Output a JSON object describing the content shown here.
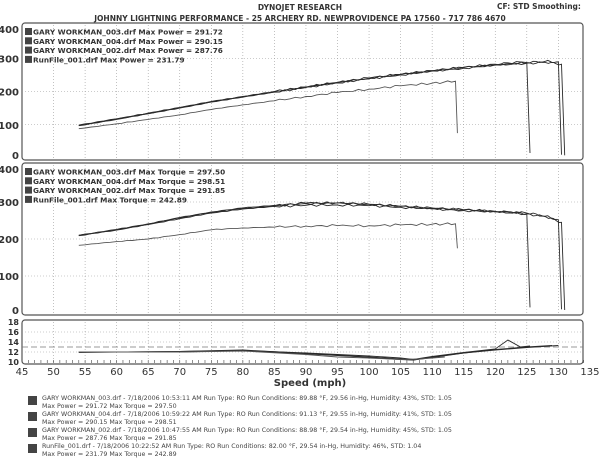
{
  "header": {
    "title": "DYNOJET RESEARCH",
    "subtitle": "JOHNNY LIGHTNING PERFORMANCE - 25 ARCHERY RD. NEWPROVIDENCE PA 17560 - 717 786 4670",
    "settings": "CF: STD  Smoothing: "
  },
  "chart_data": [
    {
      "type": "line",
      "title": "",
      "ylim": [
        0,
        400
      ],
      "yticks": [
        "0",
        "100",
        "200",
        "300",
        "400"
      ],
      "xlim": [
        45,
        135
      ],
      "grid": true,
      "legend_placement": "top-left",
      "series": [
        {
          "name": "GARY WORKMAN_003.drf Max Power = 291.72",
          "x": [
            54,
            60,
            65,
            70,
            75,
            80,
            85,
            90,
            95,
            100,
            105,
            110,
            115,
            120,
            125,
            128,
            130,
            130.5
          ],
          "y": [
            99,
            118,
            135,
            152,
            170,
            185,
            200,
            214,
            227,
            240,
            251,
            262,
            272,
            280,
            287,
            291,
            289,
            10
          ]
        },
        {
          "name": "GARY WORKMAN_004.drf Max Power = 290.15",
          "x": [
            54,
            60,
            65,
            70,
            75,
            80,
            85,
            90,
            95,
            100,
            105,
            110,
            115,
            120,
            124,
            125,
            125.5
          ],
          "y": [
            98,
            117,
            134,
            151,
            169,
            184,
            199,
            213,
            228,
            241,
            252,
            263,
            273,
            282,
            289,
            287,
            15
          ]
        },
        {
          "name": "GARY WORKMAN_002.drf Max Power = 287.76",
          "x": [
            54,
            60,
            65,
            70,
            75,
            80,
            85,
            90,
            95,
            100,
            105,
            110,
            115,
            120,
            125,
            128,
            130.5,
            131
          ],
          "y": [
            97,
            116,
            133,
            150,
            168,
            183,
            198,
            212,
            226,
            238,
            250,
            261,
            270,
            279,
            285,
            287,
            282,
            8
          ]
        },
        {
          "name": "RunFile_001.drf Max Power = 231.79",
          "x": [
            54,
            60,
            65,
            70,
            75,
            80,
            85,
            90,
            95,
            100,
            105,
            110,
            113.7,
            114
          ],
          "y": [
            88,
            103,
            116,
            130,
            146,
            160,
            172,
            185,
            197,
            207,
            217,
            225,
            231,
            75
          ]
        }
      ]
    },
    {
      "type": "line",
      "title": "",
      "ylim": [
        0,
        400
      ],
      "yticks": [
        "0",
        "100",
        "200",
        "300",
        "400"
      ],
      "xlim": [
        45,
        135
      ],
      "grid": true,
      "legend_placement": "top-left",
      "series": [
        {
          "name": "GARY WORKMAN_003.drf Max Torque = 297.50",
          "x": [
            54,
            60,
            65,
            70,
            75,
            80,
            85,
            90,
            95,
            100,
            105,
            110,
            115,
            120,
            125,
            128,
            130,
            130.5
          ],
          "y": [
            210,
            225,
            240,
            257,
            272,
            283,
            290,
            296,
            297,
            294,
            288,
            283,
            279,
            275,
            270,
            262,
            252,
            10
          ]
        },
        {
          "name": "GARY WORKMAN_004.drf Max Torque = 298.51",
          "x": [
            54,
            60,
            65,
            70,
            75,
            80,
            85,
            90,
            95,
            100,
            105,
            110,
            115,
            120,
            124,
            125,
            125.5
          ],
          "y": [
            210,
            226,
            241,
            258,
            273,
            284,
            291,
            297,
            298,
            294,
            289,
            284,
            279,
            275,
            271,
            268,
            15
          ]
        },
        {
          "name": "GARY WORKMAN_002.drf Max Torque = 291.85",
          "x": [
            54,
            60,
            65,
            70,
            75,
            80,
            85,
            90,
            95,
            100,
            105,
            110,
            115,
            120,
            125,
            128,
            130.5,
            131
          ],
          "y": [
            209,
            224,
            239,
            255,
            270,
            281,
            288,
            291,
            292,
            290,
            286,
            281,
            277,
            273,
            268,
            260,
            245,
            8
          ]
        },
        {
          "name": "RunFile_001.drf Max Torque = 242.89",
          "x": [
            54,
            60,
            65,
            70,
            75,
            80,
            85,
            90,
            95,
            100,
            105,
            110,
            113.7,
            114
          ],
          "y": [
            183,
            193,
            200,
            212,
            225,
            230,
            232,
            235,
            236,
            236,
            238,
            240,
            241,
            175
          ]
        }
      ]
    },
    {
      "type": "line",
      "title": "",
      "xlabel": "Speed (mph)",
      "ylim": [
        10,
        18
      ],
      "yticks": [
        "10",
        "12",
        "14",
        "16",
        "18"
      ],
      "xlim": [
        45,
        135
      ],
      "xticks": [
        "45",
        "50",
        "55",
        "60",
        "65",
        "70",
        "75",
        "80",
        "85",
        "90",
        "95",
        "100",
        "105",
        "110",
        "115",
        "120",
        "125",
        "130",
        "135"
      ],
      "grid": true,
      "series": [
        {
          "x": [
            54,
            60,
            70,
            80,
            90,
            95,
            100,
            105,
            107,
            110,
            115,
            120,
            125,
            129
          ],
          "y": [
            12,
            12,
            12.1,
            12.4,
            11.7,
            11.3,
            11.0,
            10.6,
            10.4,
            11.0,
            11.8,
            12.5,
            13.0,
            13.3
          ]
        },
        {
          "x": [
            54,
            60,
            70,
            80,
            90,
            95,
            100,
            105,
            107,
            110,
            115,
            120,
            122,
            124,
            125.5
          ],
          "y": [
            12,
            12,
            12.0,
            12.3,
            11.8,
            11.5,
            11.2,
            10.8,
            10.5,
            11.1,
            11.9,
            12.6,
            14.4,
            13.0,
            13.2
          ]
        },
        {
          "x": [
            54,
            60,
            70,
            80,
            90,
            95,
            100,
            105,
            107,
            110,
            115,
            120,
            125,
            130
          ],
          "y": [
            11.9,
            12,
            12.1,
            12.3,
            11.6,
            11.4,
            10.9,
            10.5,
            10.4,
            10.9,
            11.8,
            12.4,
            12.9,
            13.3
          ]
        },
        {
          "x": [
            54,
            60,
            70,
            80,
            90,
            95,
            100,
            105,
            108,
            112
          ],
          "y": [
            12,
            12,
            12.0,
            12.2,
            11.5,
            11.0,
            10.8,
            10.5,
            10.6,
            11.0
          ]
        }
      ]
    }
  ],
  "run_notes": [
    {
      "line1": "GARY WORKMAN_003.drf - 7/18/2006 10:53:11 AM  Run Type: RO  Run Conditions: 89.88 °F, 29.56 in-Hg,  Humidity:  43%, STD: 1.05",
      "line2": "Max Power = 291.72  Max Torque = 297.50"
    },
    {
      "line1": "GARY WORKMAN_004.drf - 7/18/2006 10:59:22 AM  Run Type: RO  Run Conditions: 91.13 °F, 29.55 in-Hg,  Humidity:  41%, STD: 1.05",
      "line2": "Max Power = 290.15  Max Torque = 298.51"
    },
    {
      "line1": "GARY WORKMAN_002.drf - 7/18/2006 10:47:55 AM  Run Type: RO  Run Conditions: 88.98 °F, 29.54 in-Hg,  Humidity:  45%, STD: 1.05",
      "line2": "Max Power = 287.76  Max Torque = 291.85"
    },
    {
      "line1": "RunFile_001.drf - 7/18/2006 10:22:52 AM  Run Type: RO  Run Conditions: 82.00 °F, 29.54 in-Hg,  Humidity:  46%, STD: 1.04",
      "line2": "Max Power = 231.79  Max Torque = 242.89"
    }
  ],
  "colors": {
    "line": "#2a2a2a",
    "line_light": "#555555",
    "grid": "#999999",
    "frame": "#555555"
  }
}
